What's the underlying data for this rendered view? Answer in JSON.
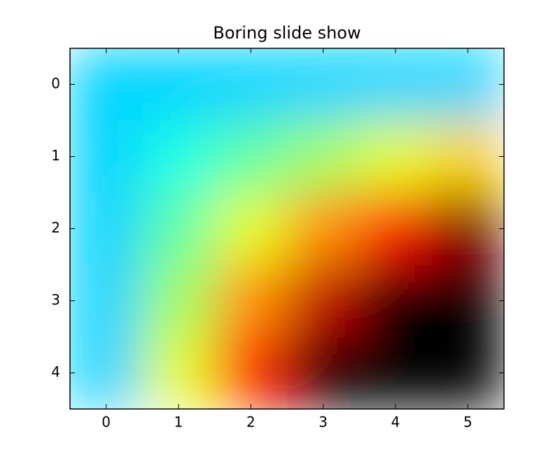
{
  "chart_data": {
    "type": "heatmap",
    "title": "Boring slide show",
    "values": [
      [
        0,
        0,
        0,
        0,
        0,
        0
      ],
      [
        0,
        1,
        2,
        3,
        4,
        5
      ],
      [
        0,
        2,
        4,
        6,
        8,
        10
      ],
      [
        0,
        3,
        6,
        9,
        12,
        15
      ],
      [
        0,
        4,
        8,
        12,
        16,
        20
      ]
    ],
    "colormap": "jet",
    "clim": [
      -5,
      10
    ],
    "interpolation": "bilinear",
    "xlim": [
      -0.5,
      5.5
    ],
    "ylim": [
      4.5,
      -0.5
    ],
    "xticks": [
      0,
      1,
      2,
      3,
      4,
      5
    ],
    "yticks": [
      0,
      1,
      2,
      3,
      4
    ]
  }
}
